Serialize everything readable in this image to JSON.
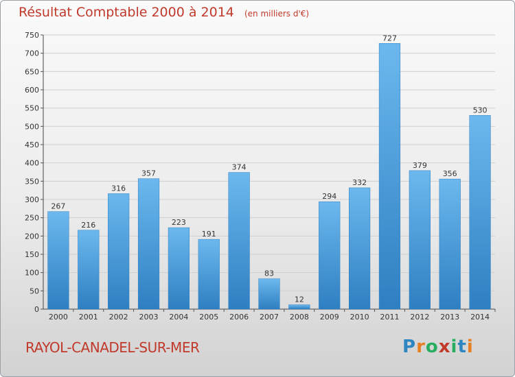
{
  "header": {
    "title": "Résultat Comptable 2000 à 2014",
    "subtitle": "(en milliers d'€)"
  },
  "footer": {
    "commune": "RAYOL-CANADEL-SUR-MER",
    "logo": "Proxiti"
  },
  "logo_letters": [
    {
      "char": "P",
      "color": "#2e86c1"
    },
    {
      "char": "r",
      "color": "#e67e22"
    },
    {
      "char": "o",
      "color": "#27ae60"
    },
    {
      "char": "x",
      "color": "#c0392b"
    },
    {
      "char": "i",
      "color": "#27ae60"
    },
    {
      "char": "t",
      "color": "#2e86c1"
    },
    {
      "char": "i",
      "color": "#e67e22"
    }
  ],
  "colors": {
    "bar": "#4a9fe0",
    "bar_light": "#6cb8ee",
    "bar_dark": "#2e7fc2",
    "text_accent": "#c0392b",
    "grid": "#cfcfcf"
  },
  "chart_data": {
    "type": "bar",
    "title": "Résultat Comptable 2000 à 2014",
    "subtitle": "(en milliers d'€)",
    "categories": [
      "2000",
      "2001",
      "2002",
      "2003",
      "2004",
      "2005",
      "2006",
      "2007",
      "2008",
      "2009",
      "2010",
      "2011",
      "2012",
      "2013",
      "2014"
    ],
    "values": [
      267,
      216,
      316,
      357,
      223,
      191,
      374,
      83,
      12,
      294,
      332,
      727,
      379,
      356,
      530
    ],
    "ylim": [
      0,
      750
    ],
    "yticks": [
      0,
      50,
      100,
      150,
      200,
      250,
      300,
      350,
      400,
      450,
      500,
      550,
      600,
      650,
      700,
      750
    ],
    "grid": true,
    "data_labels": true
  }
}
